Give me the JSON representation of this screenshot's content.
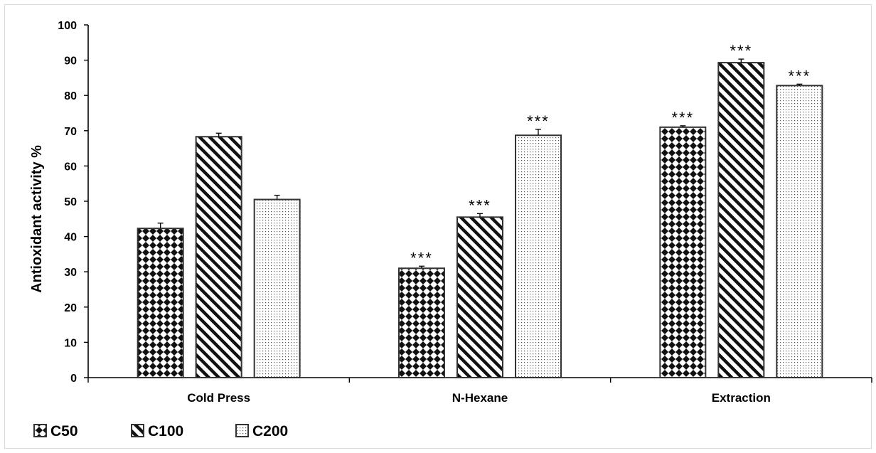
{
  "chart_data": {
    "type": "bar",
    "title": "",
    "xlabel": "",
    "ylabel": "Antioxidant activity %",
    "ylim": [
      0,
      100
    ],
    "yticks": [
      0,
      10,
      20,
      30,
      40,
      50,
      60,
      70,
      80,
      90,
      100
    ],
    "categories": [
      "Cold Press",
      "N-Hexane",
      "Extraction"
    ],
    "series": [
      {
        "name": "C50",
        "values": [
          42.3,
          31.0,
          71.0
        ],
        "errors": [
          1.5,
          0.6,
          0.4
        ],
        "significance": [
          "",
          "***",
          "***"
        ],
        "pattern": "checker"
      },
      {
        "name": "C100",
        "values": [
          68.3,
          45.5,
          89.3
        ],
        "errors": [
          1.0,
          1.0,
          1.0
        ],
        "significance": [
          "",
          "***",
          "***"
        ],
        "pattern": "diagonal"
      },
      {
        "name": "C200",
        "values": [
          50.5,
          68.7,
          82.8
        ],
        "errors": [
          1.2,
          1.7,
          0.4
        ],
        "significance": [
          "",
          "***",
          "***"
        ],
        "pattern": "dots"
      }
    ],
    "legend": "bottom-left",
    "grid": false
  }
}
